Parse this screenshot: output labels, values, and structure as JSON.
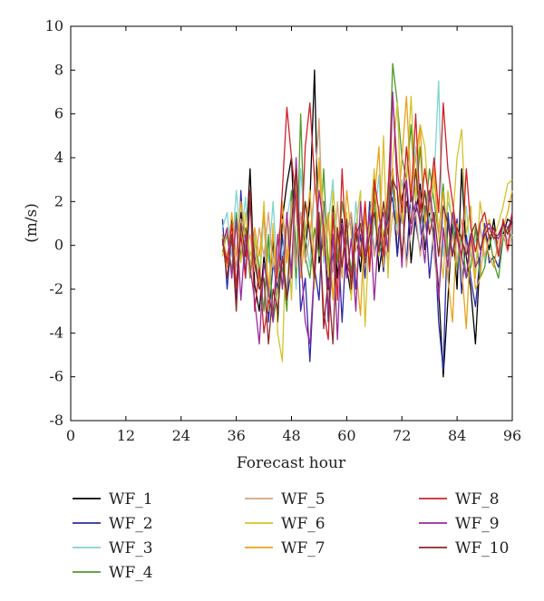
{
  "chart_data": {
    "type": "line",
    "title": "",
    "xlabel": "Forecast hour",
    "ylabel": "(m/s)",
    "xlim": [
      0,
      96
    ],
    "ylim": [
      -8,
      10
    ],
    "xticks": [
      0,
      12,
      24,
      36,
      48,
      60,
      72,
      84,
      96
    ],
    "yticks": [
      -8,
      -6,
      -4,
      -2,
      0,
      2,
      4,
      6,
      8,
      10
    ],
    "grid": false,
    "legend_position": "bottom, 3 columns",
    "x": [
      33,
      34,
      35,
      36,
      37,
      38,
      39,
      40,
      41,
      42,
      43,
      44,
      45,
      46,
      47,
      48,
      49,
      50,
      51,
      52,
      53,
      54,
      55,
      56,
      57,
      58,
      59,
      60,
      61,
      62,
      63,
      64,
      65,
      66,
      67,
      68,
      69,
      70,
      71,
      72,
      73,
      74,
      75,
      76,
      77,
      78,
      79,
      80,
      81,
      82,
      83,
      84,
      85,
      86,
      87,
      88,
      89,
      90,
      91,
      92,
      93,
      94,
      95,
      96
    ],
    "series": [
      {
        "name": "WF_1",
        "color": "#000000",
        "values": [
          0.5,
          -0.8,
          1.2,
          -2.0,
          1.5,
          -0.5,
          3.5,
          -1.8,
          -3.0,
          -0.5,
          -2.5,
          0.3,
          -3.5,
          1.2,
          2.8,
          4.0,
          -1.0,
          1.5,
          -0.3,
          2.0,
          8.0,
          -0.8,
          0.3,
          -2.0,
          1.8,
          -1.5,
          1.2,
          -1.0,
          -2.3,
          0.8,
          -1.2,
          1.5,
          -0.5,
          2.8,
          -1.2,
          0.3,
          1.2,
          3.5,
          -0.5,
          2.2,
          3.0,
          -0.8,
          1.5,
          2.8,
          -0.2,
          1.5,
          0.5,
          -2.0,
          -6.0,
          -2.5,
          1.2,
          -2.0,
          3.5,
          -0.5,
          -2.0,
          -4.5,
          -0.5,
          0.8,
          -0.2,
          1.2,
          -0.5,
          0.5,
          1.2,
          1.0
        ]
      },
      {
        "name": "WF_2",
        "color": "#2b2ba8",
        "values": [
          1.2,
          -2.0,
          0.5,
          -2.5,
          2.5,
          -1.5,
          2.0,
          -0.5,
          -2.0,
          1.8,
          -3.5,
          -0.8,
          -2.0,
          0.5,
          -2.5,
          -1.0,
          2.5,
          -3.0,
          -1.5,
          -5.3,
          -1.0,
          -2.5,
          2.0,
          -3.5,
          -0.5,
          0.8,
          -3.5,
          0.5,
          1.5,
          -2.0,
          0.5,
          -1.5,
          2.0,
          -0.5,
          0.8,
          -1.2,
          1.5,
          2.2,
          -0.5,
          1.8,
          -0.8,
          2.5,
          1.0,
          -0.3,
          1.8,
          -1.5,
          0.8,
          -3.5,
          -5.7,
          1.5,
          -0.5,
          1.2,
          -2.2,
          0.5,
          -1.5,
          -2.8,
          -0.5,
          1.0,
          -0.8,
          -0.5,
          -1.0,
          0.3,
          0.8,
          1.0
        ]
      },
      {
        "name": "WF_3",
        "color": "#7fd3d3",
        "values": [
          0.8,
          1.5,
          -0.5,
          2.5,
          0.3,
          2.2,
          -1.0,
          0.5,
          -2.0,
          1.5,
          -0.8,
          2.0,
          -1.5,
          -0.5,
          1.2,
          2.5,
          -2.0,
          3.5,
          0.5,
          -1.0,
          2.8,
          5.5,
          -0.8,
          1.0,
          3.0,
          -0.5,
          1.8,
          0.8,
          -1.5,
          2.0,
          -0.3,
          1.5,
          -0.8,
          1.0,
          3.2,
          -0.5,
          1.8,
          2.5,
          0.8,
          3.0,
          1.5,
          2.0,
          4.5,
          0.5,
          2.5,
          1.0,
          3.0,
          7.5,
          -0.5,
          2.0,
          1.2,
          -1.0,
          0.5,
          1.8,
          -0.5,
          0.2,
          1.0,
          -0.8,
          0.5,
          0.3,
          -0.5,
          0.8,
          0.2,
          0.5
        ]
      },
      {
        "name": "WF_4",
        "color": "#4e9a2a",
        "values": [
          -0.3,
          0.5,
          -1.2,
          1.5,
          -0.5,
          0.8,
          -1.5,
          0.3,
          -1.0,
          -3.0,
          0.5,
          -3.5,
          -2.0,
          -1.0,
          -3.0,
          2.5,
          -1.5,
          6.0,
          -0.5,
          -1.5,
          0.8,
          -0.5,
          3.5,
          -1.0,
          1.5,
          -0.8,
          2.0,
          0.5,
          -1.2,
          0.8,
          -0.5,
          1.8,
          -1.0,
          2.0,
          -0.5,
          0.5,
          1.5,
          8.3,
          6.5,
          4.0,
          3.0,
          5.5,
          2.0,
          4.5,
          1.0,
          3.5,
          2.0,
          0.5,
          2.8,
          -0.5,
          1.5,
          -1.0,
          0.5,
          -1.5,
          -1.0,
          0.8,
          -1.5,
          -1.0,
          0.5,
          -0.8,
          -1.5,
          0.3,
          0.8,
          0.3
        ]
      },
      {
        "name": "WF_5",
        "color": "#d9a27a",
        "values": [
          0.3,
          -0.5,
          0.8,
          -1.0,
          1.2,
          -0.3,
          0.5,
          -1.2,
          0.8,
          -0.5,
          1.5,
          -1.0,
          0.3,
          1.2,
          -0.5,
          2.0,
          -1.0,
          1.5,
          -0.8,
          0.5,
          2.5,
          5.8,
          -0.5,
          1.0,
          -1.2,
          2.0,
          -0.8,
          0.5,
          1.5,
          -0.3,
          0.8,
          -1.0,
          1.2,
          -0.5,
          1.8,
          0.3,
          -0.8,
          1.5,
          0.5,
          2.0,
          -1.0,
          0.8,
          1.5,
          -0.5,
          1.0,
          2.5,
          -0.5,
          -2.3,
          0.8,
          -1.5,
          0.5,
          -0.8,
          1.2,
          -0.3,
          0.5,
          -1.0,
          0.8,
          -0.5,
          0.3,
          0.8,
          -0.5,
          0.5,
          -0.3,
          0.5
        ]
      },
      {
        "name": "WF_6",
        "color": "#d4c22a",
        "values": [
          -0.5,
          0.8,
          -1.5,
          1.0,
          -0.8,
          1.5,
          -0.5,
          0.3,
          -1.8,
          2.0,
          -3.0,
          1.0,
          -4.0,
          -5.3,
          1.5,
          -2.5,
          3.5,
          -1.0,
          2.0,
          0.8,
          -2.0,
          4.0,
          1.5,
          -1.5,
          2.5,
          0.3,
          -1.0,
          1.5,
          -2.5,
          0.8,
          2.5,
          -3.7,
          1.0,
          3.5,
          -0.5,
          5.0,
          -1.5,
          4.0,
          6.5,
          1.0,
          3.0,
          6.8,
          2.0,
          5.5,
          4.5,
          1.5,
          3.0,
          0.5,
          -1.5,
          2.5,
          1.0,
          4.0,
          5.3,
          0.5,
          1.8,
          -1.5,
          2.0,
          0.5,
          1.2,
          0.3,
          1.0,
          1.8,
          2.8,
          3.0
        ]
      },
      {
        "name": "WF_7",
        "color": "#e8a21a",
        "values": [
          0.5,
          -1.0,
          1.5,
          -0.5,
          2.0,
          0.3,
          -1.2,
          0.8,
          -0.5,
          1.5,
          -2.0,
          0.5,
          -1.5,
          2.0,
          -0.8,
          1.0,
          3.0,
          -1.5,
          0.5,
          2.5,
          -1.0,
          3.8,
          -0.5,
          1.5,
          -2.5,
          0.8,
          -1.5,
          2.5,
          0.5,
          -1.0,
          -3.2,
          1.5,
          -0.5,
          2.0,
          4.5,
          -1.0,
          2.8,
          3.5,
          1.0,
          4.0,
          6.8,
          2.5,
          4.0,
          5.5,
          1.0,
          2.0,
          3.5,
          0.5,
          2.5,
          -1.5,
          -3.5,
          1.0,
          -1.0,
          -3.8,
          0.5,
          -2.0,
          -1.5,
          0.5,
          -0.5,
          -1.0,
          0.3,
          0.8,
          1.5,
          2.5
        ]
      },
      {
        "name": "WF_8",
        "color": "#d0202a",
        "values": [
          0.2,
          -0.8,
          1.0,
          -2.0,
          0.5,
          -1.5,
          2.5,
          -3.0,
          -1.0,
          -4.0,
          -2.5,
          -3.0,
          -1.0,
          2.5,
          6.3,
          4.0,
          2.0,
          -0.5,
          4.5,
          6.5,
          3.0,
          0.8,
          -3.0,
          -4.3,
          1.5,
          -2.5,
          3.5,
          -0.8,
          -1.5,
          1.0,
          -0.5,
          2.0,
          -1.2,
          3.0,
          1.5,
          -0.5,
          2.5,
          6.8,
          3.5,
          1.5,
          4.5,
          2.0,
          6.0,
          1.5,
          3.5,
          2.0,
          4.0,
          1.5,
          6.5,
          3.5,
          2.0,
          0.5,
          -0.5,
          3.5,
          0.8,
          -0.3,
          1.0,
          1.5,
          0.3,
          0.8,
          -0.5,
          1.2,
          -0.2,
          1.5
        ]
      },
      {
        "name": "WF_9",
        "color": "#9a2a9a",
        "values": [
          0.0,
          0.8,
          -1.5,
          1.2,
          -2.5,
          0.5,
          -1.0,
          -2.5,
          -4.5,
          -0.8,
          -2.0,
          -3.5,
          0.5,
          -2.0,
          1.5,
          -1.5,
          4.0,
          -0.5,
          -3.5,
          -4.5,
          -1.0,
          2.5,
          0.8,
          -3.0,
          0.5,
          -4.3,
          1.0,
          -1.5,
          0.3,
          -3.0,
          2.0,
          -0.5,
          1.5,
          -2.5,
          0.8,
          1.5,
          -0.3,
          7.0,
          2.5,
          -1.0,
          3.0,
          0.5,
          2.0,
          1.0,
          -0.8,
          2.5,
          1.0,
          -2.5,
          0.8,
          -1.0,
          1.5,
          0.3,
          -0.5,
          -1.5,
          0.5,
          -1.0,
          -0.5,
          0.8,
          1.0,
          0.5,
          0.3,
          1.0,
          0.8,
          1.2
        ]
      },
      {
        "name": "WF_10",
        "color": "#8a2a2a",
        "values": [
          0.3,
          -1.5,
          0.5,
          -3.0,
          1.0,
          -0.5,
          2.0,
          -0.8,
          -2.0,
          -1.5,
          -4.5,
          -2.0,
          -3.0,
          -0.5,
          -2.5,
          1.0,
          3.5,
          -0.5,
          2.0,
          0.5,
          -1.5,
          1.5,
          -3.8,
          -1.5,
          -4.5,
          0.8,
          -1.0,
          1.2,
          -2.0,
          0.5,
          1.0,
          -0.8,
          0.5,
          1.5,
          -0.3,
          2.0,
          0.5,
          3.0,
          2.5,
          -0.5,
          2.0,
          1.0,
          3.5,
          1.0,
          2.5,
          0.5,
          1.5,
          -0.5,
          1.8,
          1.0,
          -0.5,
          0.8,
          0.3,
          -0.5,
          0.5,
          1.0,
          -0.2,
          0.5,
          0.8,
          0.3,
          0.5,
          1.0,
          0.5,
          1.5
        ]
      }
    ]
  }
}
